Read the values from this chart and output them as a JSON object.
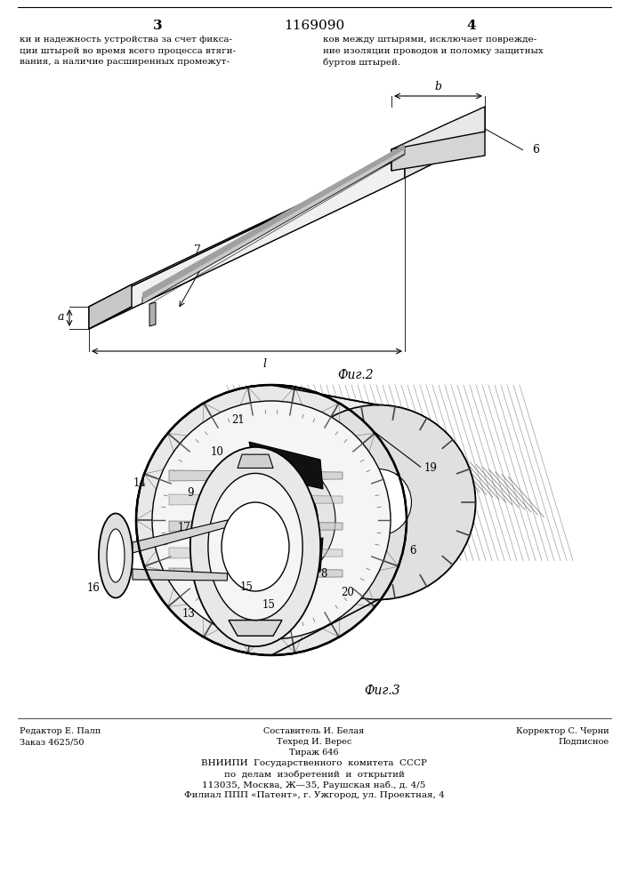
{
  "page_number_left": "3",
  "page_number_right": "4",
  "patent_number": "1169090",
  "text_left": "ки и надежность устройства за счет фикса-\nции штырей во время всего процесса втяги-\nвания, а наличие расширенных промежут-",
  "text_right": "ков между штырями, исключает поврежде-\nние изоляции проводов и поломку защитных\nбуртов штырей.",
  "fig2_label": "Фиг.2",
  "fig3_label": "Фиг.3",
  "footer_line1_left": "Редактор Е. Палп",
  "footer_line1_center": "Составитель И. Белая",
  "footer_line1_right": "Корректор С. Черни",
  "footer_line2_left": "Заказ 4625/50",
  "footer_line2_center": "Техред И. Верес",
  "footer_line2_right": "Подписное",
  "footer_line3_center": "Тираж 646",
  "footer_org": "ВНИИПИ  Государственного  комитета  СССР",
  "footer_dept": "по  делам  изобретений  и  открытий",
  "footer_addr1": "113035, Москва, Ж—35, Раушская наб., д. 4/5",
  "footer_addr2": "Филиал ППП «Патент», г. Ужгород, ул. Проектная, 4",
  "bg_color": "#ffffff",
  "text_color": "#000000",
  "line_color": "#000000"
}
